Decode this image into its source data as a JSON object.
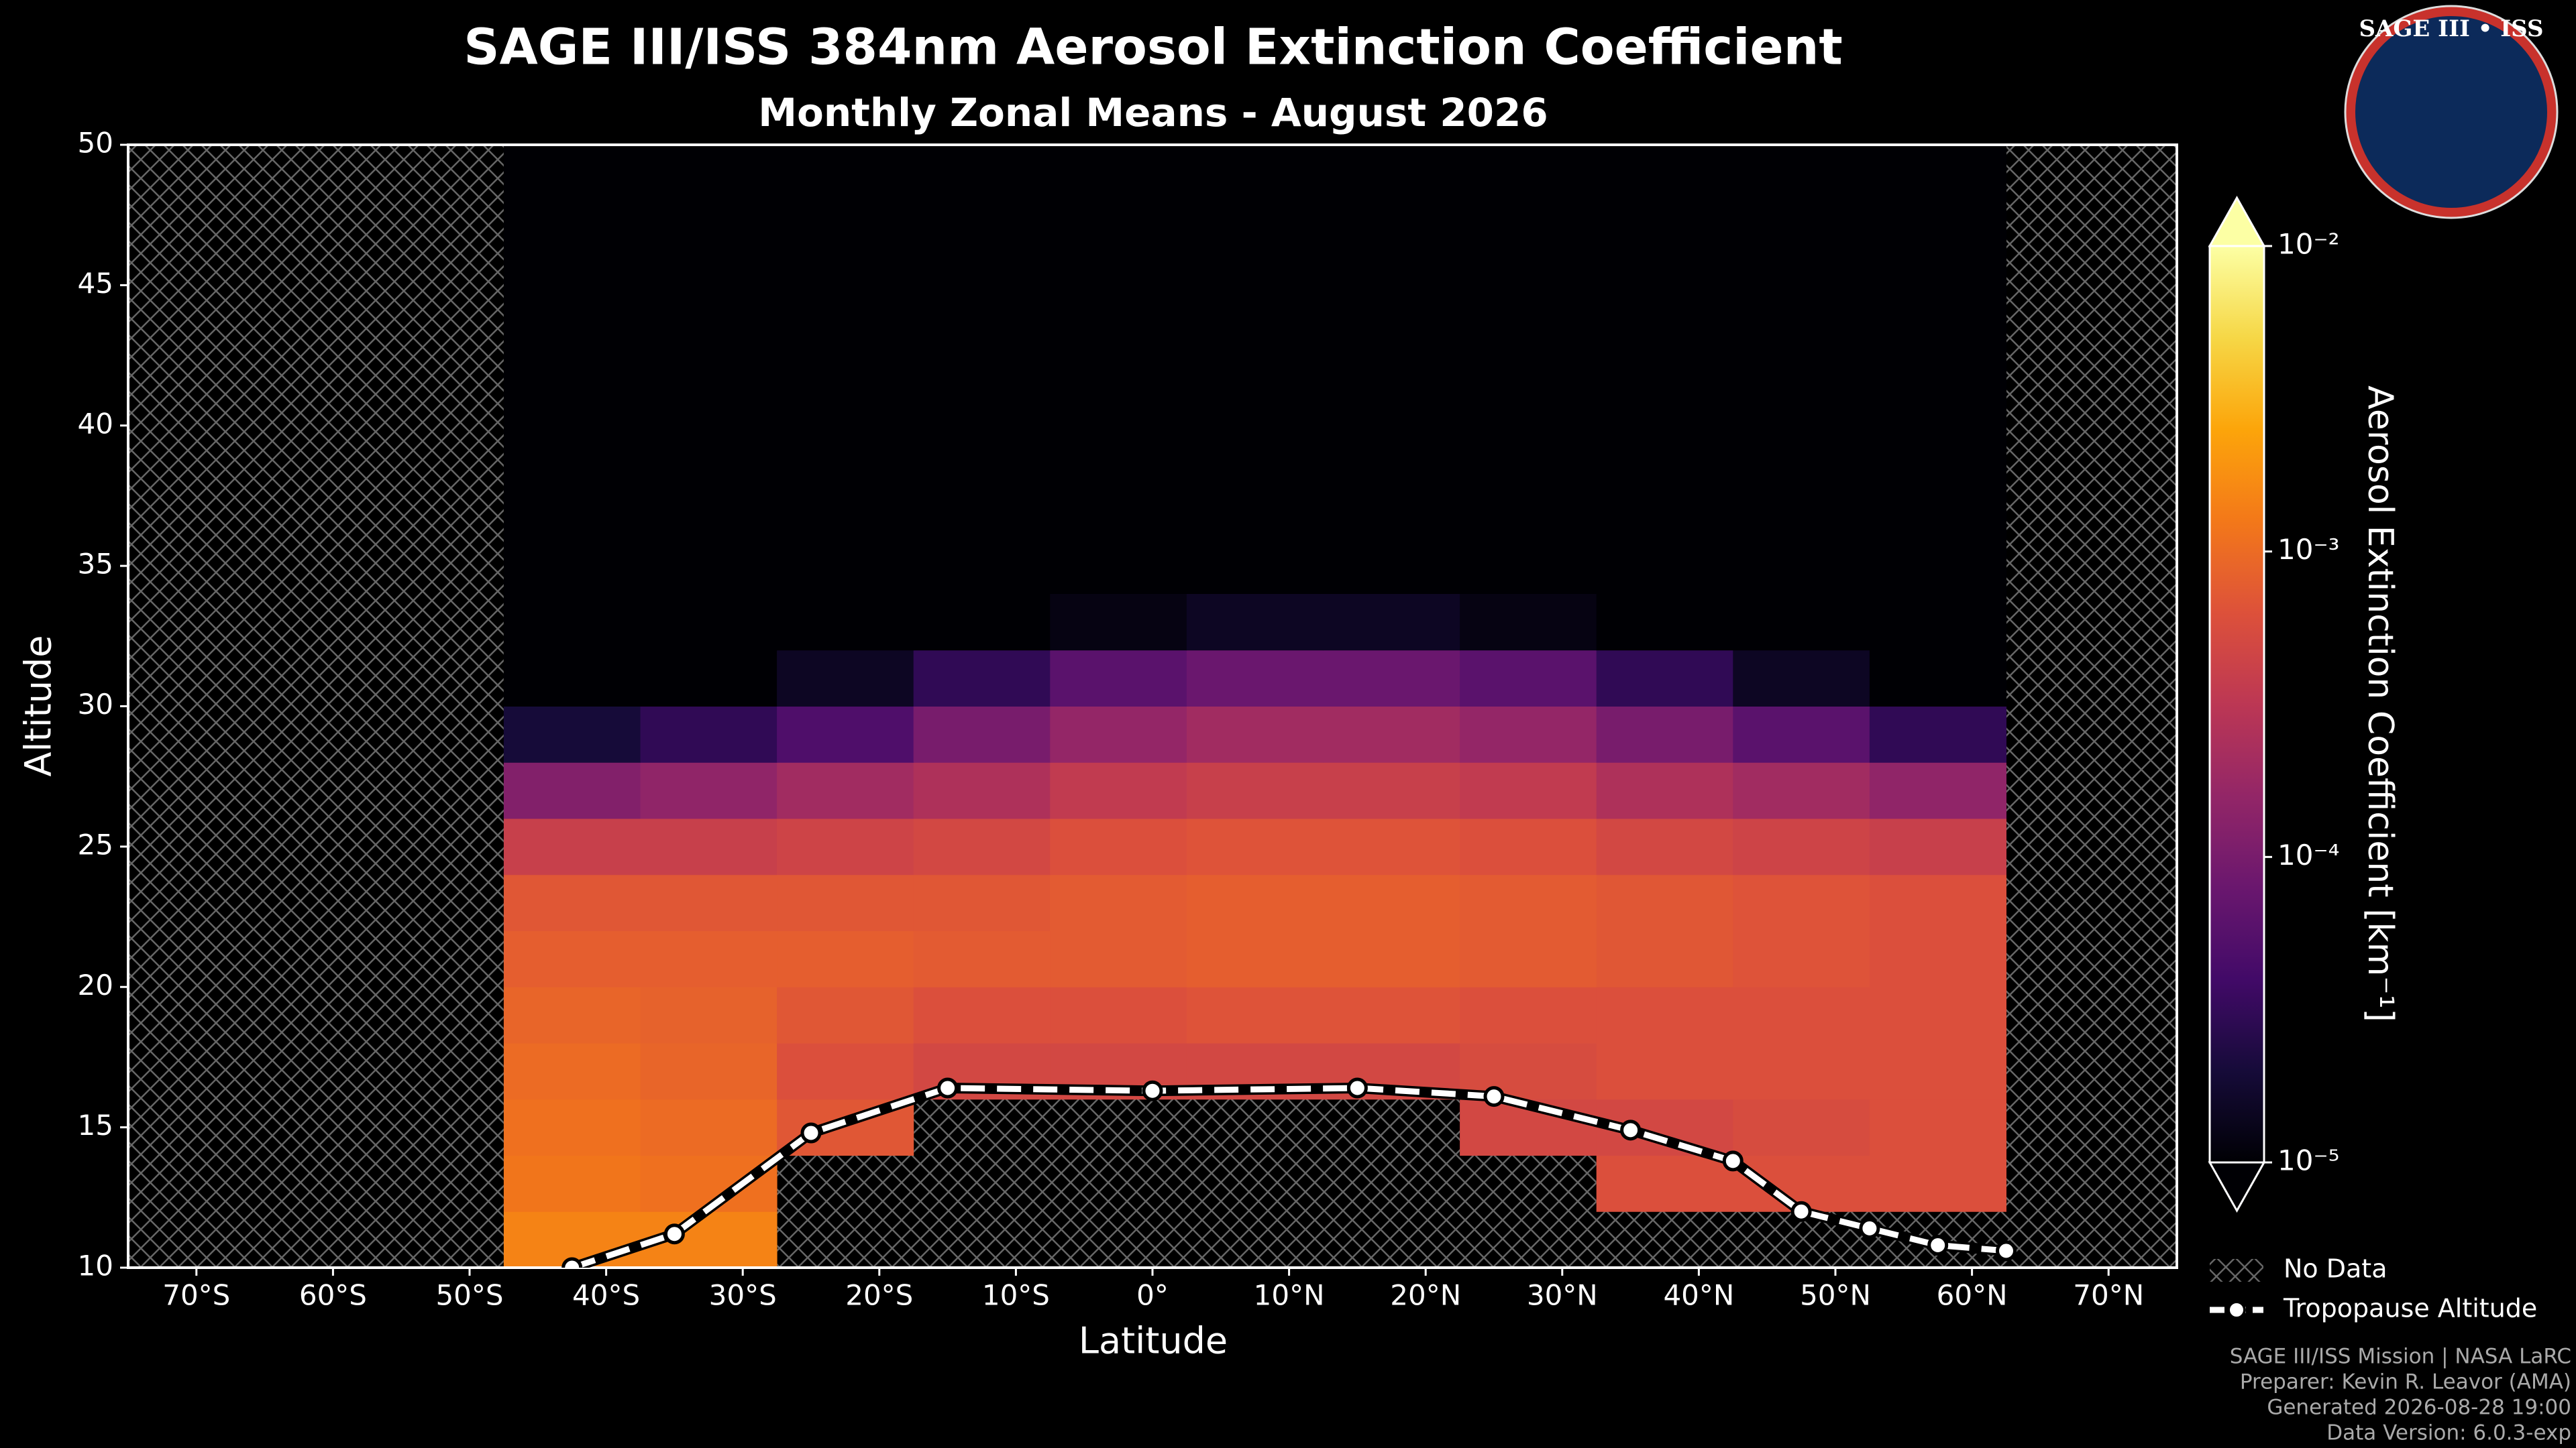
{
  "chart_data": {
    "type": "contour",
    "title": "SAGE III/ISS 384nm Aerosol Extinction Coefficient",
    "subtitle": "Monthly Zonal Means - August 2026",
    "xlabel": "Latitude",
    "ylabel": "Altitude",
    "xlim": [
      -75,
      75
    ],
    "ylim": [
      10,
      50
    ],
    "xticks": [
      {
        "value": -70,
        "label": "70°S"
      },
      {
        "value": -60,
        "label": "60°S"
      },
      {
        "value": -50,
        "label": "50°S"
      },
      {
        "value": -40,
        "label": "40°S"
      },
      {
        "value": -30,
        "label": "30°S"
      },
      {
        "value": -20,
        "label": "20°S"
      },
      {
        "value": -10,
        "label": "10°S"
      },
      {
        "value": 0,
        "label": "0°"
      },
      {
        "value": 10,
        "label": "10°N"
      },
      {
        "value": 20,
        "label": "20°N"
      },
      {
        "value": 30,
        "label": "30°N"
      },
      {
        "value": 40,
        "label": "40°N"
      },
      {
        "value": 50,
        "label": "50°N"
      },
      {
        "value": 60,
        "label": "60°N"
      },
      {
        "value": 70,
        "label": "70°N"
      }
    ],
    "yticks": [
      10,
      15,
      20,
      25,
      30,
      35,
      40,
      45,
      50
    ],
    "x": [
      -42.5,
      -32.5,
      -22.5,
      -12.5,
      -2.5,
      7.5,
      17.5,
      27.5,
      37.5,
      47.5,
      57.5
    ],
    "y": [
      11,
      13,
      15,
      17,
      19,
      21,
      23,
      25,
      27,
      29,
      31,
      33
    ],
    "values": [
      [
        0.0015,
        0.0015,
        null,
        null,
        null,
        null,
        null,
        null,
        null,
        null,
        null
      ],
      [
        0.0012,
        0.0011,
        null,
        null,
        null,
        null,
        null,
        null,
        0.0006,
        0.0006,
        0.0006
      ],
      [
        0.0011,
        0.001,
        0.0007,
        null,
        null,
        null,
        null,
        0.0005,
        0.0005,
        0.00055,
        0.0006
      ],
      [
        0.001,
        0.0009,
        0.0006,
        0.0005,
        0.0005,
        0.0005,
        0.0005,
        0.00055,
        0.0006,
        0.0006,
        0.0006
      ],
      [
        0.0009,
        0.00085,
        0.0007,
        0.0006,
        0.0006,
        0.00065,
        0.00065,
        0.0006,
        0.0006,
        0.0006,
        0.0006
      ],
      [
        0.0008,
        0.0008,
        0.0008,
        0.00075,
        0.00075,
        0.0008,
        0.0008,
        0.00075,
        0.0007,
        0.00065,
        0.0006
      ],
      [
        0.0007,
        0.0007,
        0.0007,
        0.0007,
        0.00075,
        0.0008,
        0.0008,
        0.00075,
        0.0007,
        0.00065,
        0.0006
      ],
      [
        0.0004,
        0.0004,
        0.00045,
        0.0005,
        0.0006,
        0.00065,
        0.00065,
        0.0006,
        0.0005,
        0.00045,
        0.0004
      ],
      [
        0.00012,
        0.00015,
        0.0002,
        0.00025,
        0.00035,
        0.0004,
        0.0004,
        0.00035,
        0.00025,
        0.0002,
        0.00015
      ],
      [
        2e-05,
        3e-05,
        5e-05,
        0.0001,
        0.00016,
        0.0002,
        0.0002,
        0.00016,
        0.0001,
        6e-05,
        3e-05
      ],
      [
        1e-05,
        1e-05,
        1.5e-05,
        3e-05,
        6e-05,
        8e-05,
        8e-05,
        6e-05,
        3e-05,
        1.5e-05,
        1e-05
      ],
      [
        1e-05,
        1e-05,
        1e-05,
        1e-05,
        1.2e-05,
        1.5e-05,
        1.5e-05,
        1.2e-05,
        1e-05,
        1e-05,
        1e-05
      ]
    ],
    "colormap": "inferno",
    "log_scale": true,
    "clim": [
      1e-05,
      0.01
    ],
    "colorbar_ticks": [
      {
        "value": 1e-05,
        "label": "10⁻⁵"
      },
      {
        "value": 0.0001,
        "label": "10⁻⁴"
      },
      {
        "value": 0.001,
        "label": "10⁻³"
      },
      {
        "value": 0.01,
        "label": "10⁻²"
      }
    ],
    "colorbar_label": "Aerosol Extinction Coefficient [km⁻¹]",
    "no_data_label": "No Data",
    "tropopause": {
      "name": "Tropopause Altitude",
      "color": "#ffffff",
      "x": [
        -42.5,
        -35,
        -25,
        -15,
        0,
        15,
        25,
        35,
        42.5,
        47.5,
        52.5,
        57.5,
        62.5
      ],
      "y": [
        10,
        11.2,
        14.8,
        16.4,
        16.3,
        16.4,
        16.1,
        14.9,
        13.8,
        12.0,
        11.4,
        10.8,
        10.6
      ]
    },
    "legend": "lower right"
  },
  "logo_text": "SAGE III • ISS",
  "footer": [
    "SAGE III/ISS Mission | NASA LaRC",
    "Preparer: Kevin R. Leavor (AMA)",
    "Generated 2026-08-28 19:00",
    "Data Version: 6.0.3-exp"
  ]
}
